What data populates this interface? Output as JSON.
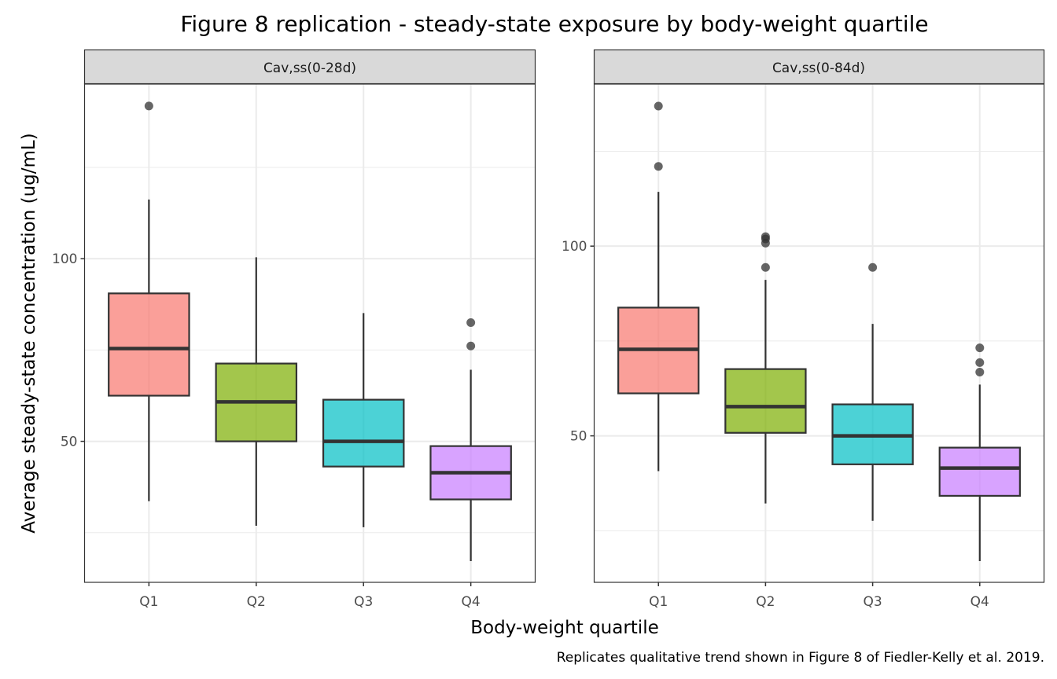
{
  "chart_data": {
    "type": "boxplot",
    "title": "Figure 8 replication - steady-state exposure by body-weight quartile",
    "xlabel": "Body-weight quartile",
    "ylabel": "Average steady-state concentration (ug/mL)",
    "caption": "Replicates qualitative trend shown in Figure 8 of Fiedler-Kelly et al. 2019.",
    "categories": [
      "Q1",
      "Q2",
      "Q3",
      "Q4"
    ],
    "colors": {
      "Q1": "#F8766D",
      "Q2": "#7CAE00",
      "Q3": "#00BFC4",
      "Q4": "#C77CFF"
    },
    "grid": true,
    "facets": [
      {
        "strip": "Cav,ss(0-28d)",
        "ylim": [
          11.4,
          147.8
        ],
        "yticks": [
          50,
          100
        ],
        "ytick_labels": [
          "50",
          "100"
        ],
        "minor_grid": [
          25,
          75,
          125
        ],
        "boxes": [
          {
            "category": "Q1",
            "lower_whisker": 33.6,
            "q1": 62.5,
            "median": 75.4,
            "q3": 90.5,
            "upper_whisker": 116.2,
            "outliers": [
              141.8
            ]
          },
          {
            "category": "Q2",
            "lower_whisker": 26.9,
            "q1": 50.0,
            "median": 60.8,
            "q3": 71.3,
            "upper_whisker": 100.4,
            "outliers": []
          },
          {
            "category": "Q3",
            "lower_whisker": 26.5,
            "q1": 43.1,
            "median": 50.0,
            "q3": 61.4,
            "upper_whisker": 85.1,
            "outliers": []
          },
          {
            "category": "Q4",
            "lower_whisker": 17.2,
            "q1": 34.1,
            "median": 41.4,
            "q3": 48.7,
            "upper_whisker": 69.6,
            "outliers": [
              76.1,
              82.5
            ]
          }
        ]
      },
      {
        "strip": "Cav,ss(0-84d)",
        "ylim": [
          11.4,
          142.7
        ],
        "yticks": [
          50,
          100
        ],
        "ytick_labels": [
          "50",
          "100"
        ],
        "minor_grid": [
          25,
          75,
          125
        ],
        "boxes": [
          {
            "category": "Q1",
            "lower_whisker": 40.7,
            "q1": 61.2,
            "median": 72.8,
            "q3": 83.8,
            "upper_whisker": 114.3,
            "outliers": [
              121.0,
              136.9
            ]
          },
          {
            "category": "Q2",
            "lower_whisker": 32.2,
            "q1": 50.8,
            "median": 57.7,
            "q3": 67.6,
            "upper_whisker": 91.1,
            "outliers": [
              94.4,
              100.8,
              101.9,
              102.5
            ]
          },
          {
            "category": "Q3",
            "lower_whisker": 27.6,
            "q1": 42.5,
            "median": 50.0,
            "q3": 58.3,
            "upper_whisker": 79.5,
            "outliers": [
              94.4
            ]
          },
          {
            "category": "Q4",
            "lower_whisker": 17.0,
            "q1": 34.2,
            "median": 41.5,
            "q3": 46.9,
            "upper_whisker": 63.5,
            "outliers": [
              66.8,
              69.3,
              73.2
            ]
          }
        ]
      }
    ]
  }
}
